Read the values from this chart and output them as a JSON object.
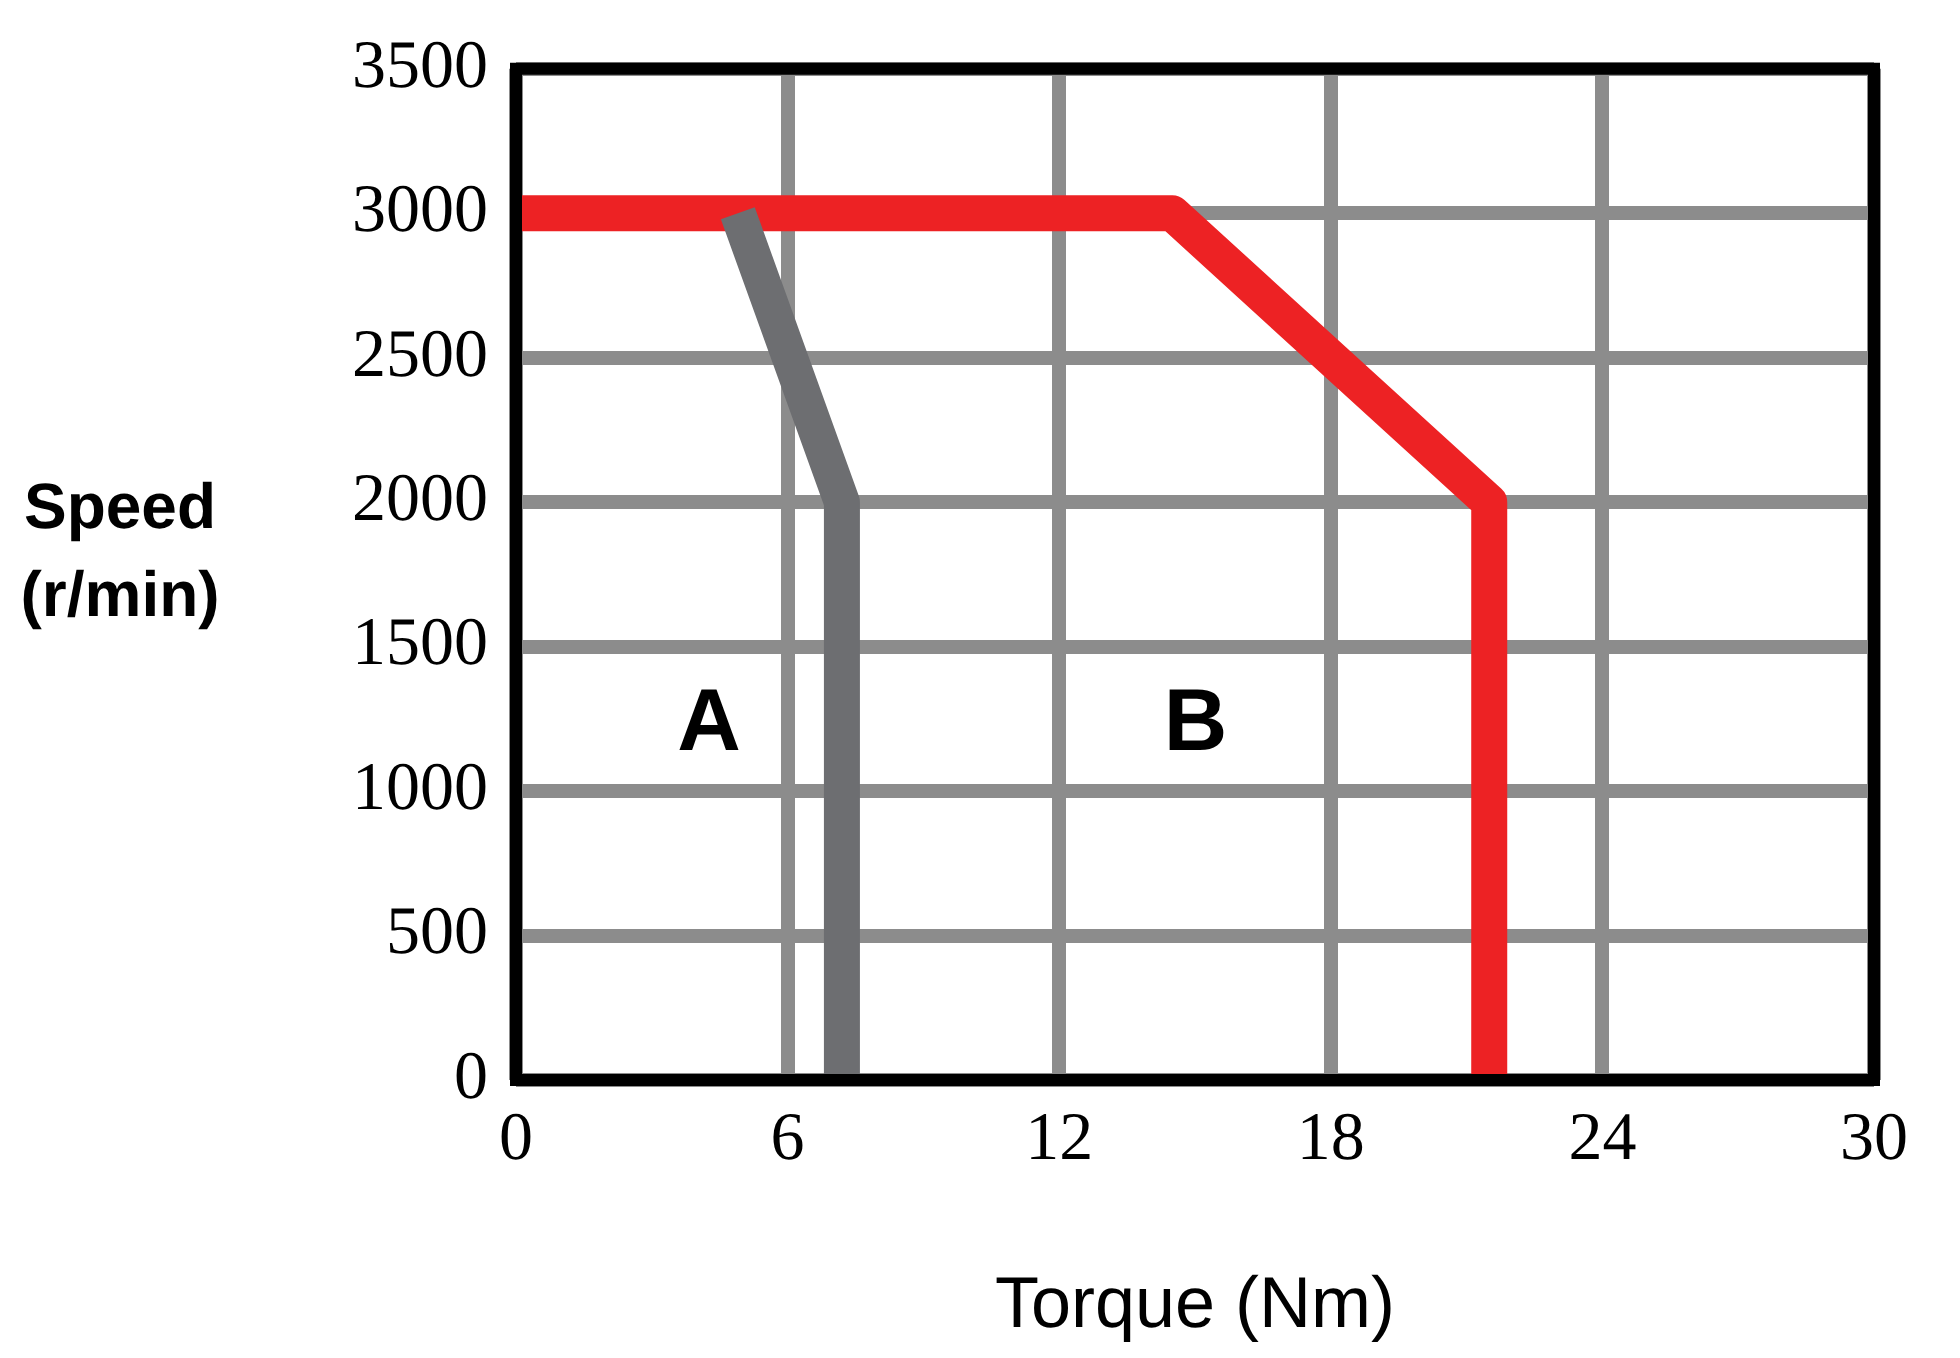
{
  "chart_data": {
    "type": "line",
    "xlabel": "Torque (Nm)",
    "ylabel": "Speed (r/min)",
    "series": [
      {
        "name": "A",
        "x": [
          4.9,
          7.2,
          7.2
        ],
        "values": [
          3000,
          2000,
          0
        ],
        "color": "#6d6e71"
      },
      {
        "name": "B",
        "x": [
          0,
          14.5,
          21.5,
          21.5
        ],
        "values": [
          3000,
          3000,
          2000,
          0
        ],
        "color": "#ed2224"
      }
    ],
    "xlim": [
      0,
      30
    ],
    "xticks": [
      0,
      6,
      12,
      18,
      24,
      30
    ],
    "ylim": [
      0,
      3500
    ],
    "yticks": [
      0,
      500,
      1000,
      1500,
      2000,
      2500,
      3000,
      3500
    ],
    "grid": true,
    "legend": false,
    "marker": "none",
    "line_style": "solid"
  }
}
